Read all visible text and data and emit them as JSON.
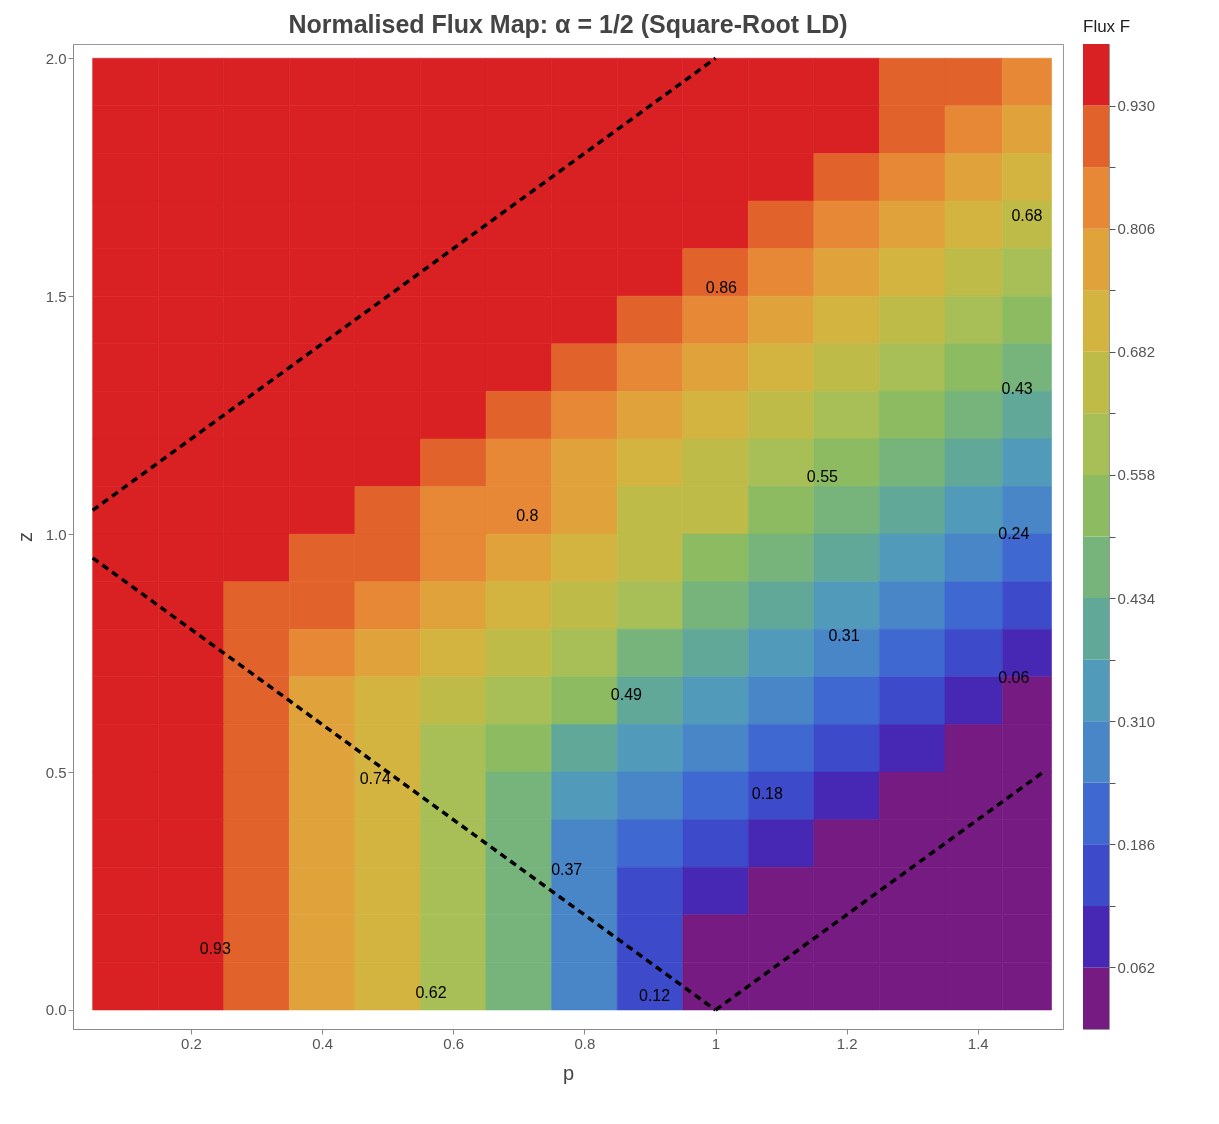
{
  "chart_data": {
    "type": "heatmap",
    "title": "Normalised Flux Map: α = 1/2 (Square-Root LD)",
    "xlabel": "p",
    "ylabel": "z",
    "clabel": "Flux F",
    "x": [
      0.1,
      0.2,
      0.3,
      0.4,
      0.5,
      0.6,
      0.7,
      0.8,
      0.9,
      1.0,
      1.1,
      1.2,
      1.3,
      1.4,
      1.475
    ],
    "y": [
      1.95,
      1.85,
      1.75,
      1.65,
      1.55,
      1.45,
      1.35,
      1.25,
      1.15,
      1.05,
      0.95,
      0.85,
      0.75,
      0.65,
      0.55,
      0.45,
      0.35,
      0.25,
      0.15,
      0.05
    ],
    "cells": [
      [
        1,
        1,
        1,
        1,
        1,
        1,
        1,
        1,
        1,
        1,
        0.97,
        0.95,
        0.92,
        0.88,
        0.85
      ],
      [
        1,
        1,
        1,
        1,
        1,
        1,
        1,
        1,
        1,
        0.98,
        0.95,
        0.93,
        0.89,
        0.83,
        0.79
      ],
      [
        1,
        1,
        1,
        1,
        1,
        1,
        1,
        1,
        0.98,
        0.96,
        0.93,
        0.89,
        0.84,
        0.78,
        0.73
      ],
      [
        1,
        1,
        1,
        1,
        1,
        1,
        1,
        0.98,
        0.96,
        0.93,
        0.89,
        0.84,
        0.78,
        0.72,
        0.67
      ],
      [
        1,
        1,
        1,
        1,
        1,
        1,
        0.98,
        0.96,
        0.93,
        0.89,
        0.85,
        0.79,
        0.73,
        0.66,
        0.61
      ],
      [
        1,
        1,
        1,
        1,
        1,
        0.98,
        0.96,
        0.93,
        0.9,
        0.85,
        0.79,
        0.73,
        0.67,
        0.6,
        0.55
      ],
      [
        1,
        1,
        1,
        1,
        0.98,
        0.96,
        0.94,
        0.9,
        0.85,
        0.79,
        0.74,
        0.67,
        0.6,
        0.53,
        0.48
      ],
      [
        1,
        1,
        1,
        0.98,
        0.96,
        0.94,
        0.9,
        0.86,
        0.8,
        0.74,
        0.67,
        0.61,
        0.54,
        0.47,
        0.41
      ],
      [
        1,
        1,
        0.99,
        0.96,
        0.94,
        0.9,
        0.86,
        0.8,
        0.74,
        0.68,
        0.61,
        0.54,
        0.47,
        0.4,
        0.34
      ],
      [
        1,
        0.99,
        0.97,
        0.94,
        0.91,
        0.86,
        0.81,
        0.75,
        0.68,
        0.62,
        0.55,
        0.48,
        0.4,
        0.33,
        0.28
      ],
      [
        0.99,
        0.97,
        0.94,
        0.91,
        0.87,
        0.81,
        0.75,
        0.69,
        0.62,
        0.55,
        0.48,
        0.41,
        0.34,
        0.27,
        0.22
      ],
      [
        0.99,
        0.95,
        0.91,
        0.87,
        0.81,
        0.76,
        0.69,
        0.63,
        0.56,
        0.49,
        0.41,
        0.34,
        0.27,
        0.2,
        0.15
      ],
      [
        0.99,
        0.95,
        0.89,
        0.82,
        0.76,
        0.7,
        0.63,
        0.56,
        0.49,
        0.42,
        0.34,
        0.28,
        0.21,
        0.14,
        0.1
      ],
      [
        0.99,
        0.95,
        0.89,
        0.8,
        0.71,
        0.64,
        0.56,
        0.5,
        0.42,
        0.35,
        0.28,
        0.21,
        0.15,
        0.09,
        0.05
      ],
      [
        0.99,
        0.95,
        0.89,
        0.8,
        0.7,
        0.58,
        0.5,
        0.43,
        0.36,
        0.29,
        0.22,
        0.15,
        0.09,
        0.04,
        0.02
      ],
      [
        0.99,
        0.95,
        0.89,
        0.8,
        0.7,
        0.58,
        0.44,
        0.36,
        0.29,
        0.22,
        0.15,
        0.1,
        0.05,
        0.02,
        0
      ],
      [
        0.99,
        0.95,
        0.89,
        0.8,
        0.7,
        0.58,
        0.44,
        0.3,
        0.22,
        0.16,
        0.1,
        0.05,
        0.02,
        0,
        0
      ],
      [
        0.99,
        0.95,
        0.89,
        0.8,
        0.7,
        0.58,
        0.44,
        0.29,
        0.16,
        0.1,
        0.05,
        0.02,
        0,
        0,
        0
      ],
      [
        0.99,
        0.95,
        0.89,
        0.8,
        0.7,
        0.58,
        0.44,
        0.29,
        0.14,
        0.06,
        0.02,
        0,
        0,
        0,
        0
      ],
      [
        0.99,
        0.95,
        0.89,
        0.8,
        0.7,
        0.58,
        0.44,
        0.29,
        0.14,
        0.03,
        0,
        0,
        0,
        0,
        0
      ]
    ],
    "xlim": [
      0.02,
      1.53
    ],
    "ylim": [
      -0.04,
      2.03
    ],
    "xticks": [
      0.2,
      0.4,
      0.6,
      0.8,
      1.0,
      1.2,
      1.4
    ],
    "yticks": [
      {
        "value": 0,
        "label": "0.0"
      },
      0.5,
      {
        "value": 1,
        "label": "1.0"
      },
      1.5,
      {
        "value": 2,
        "label": "2.0"
      }
    ],
    "clim": [
      0,
      0.992
    ],
    "cticks": [
      0.062,
      {
        "value": 0.124,
        "label": null
      },
      0.186,
      {
        "value": 0.248,
        "label": null
      },
      {
        "value": 0.31,
        "label": "0.310"
      },
      {
        "value": 0.372,
        "label": null
      },
      0.434,
      {
        "value": 0.496,
        "label": null
      },
      0.558,
      {
        "value": 0.62,
        "label": null
      },
      0.682,
      {
        "value": 0.744,
        "label": null
      },
      0.806,
      {
        "value": 0.868,
        "label": null
      },
      {
        "value": 0.93,
        "label": "0.930"
      }
    ],
    "colors": [
      "#761b82",
      "#4628b4",
      "#3d4bca",
      "#3f68d0",
      "#4886c8",
      "#529aba",
      "#62a898",
      "#76b47c",
      "#8cbb62",
      "#a7bf56",
      "#bfbb48",
      "#d3b441",
      "#e0a33c",
      "#e68835",
      "#e2622c",
      "#d92023"
    ],
    "series": [
      {
        "type": "line",
        "color": "#000000",
        "line_style": "dashed",
        "x": [
          0.05,
          1.0
        ],
        "values": [
          1.05,
          2.0
        ]
      },
      {
        "type": "line",
        "color": "#000000",
        "line_style": "dashed",
        "x": [
          0.05,
          1.0
        ],
        "values": [
          0.95,
          0.0
        ]
      },
      {
        "type": "line",
        "color": "#000000",
        "line_style": "dashed",
        "x": [
          1.0,
          1.5
        ],
        "values": [
          0.0,
          0.5
        ]
      }
    ],
    "annotations": [
      "0.93",
      "0.86",
      "0.8",
      "0.74",
      "0.68",
      "0.62",
      "0.55",
      "0.49",
      "0.43",
      "0.37",
      "0.31",
      "0.24",
      "0.18",
      "0.12",
      "0.06"
    ]
  }
}
